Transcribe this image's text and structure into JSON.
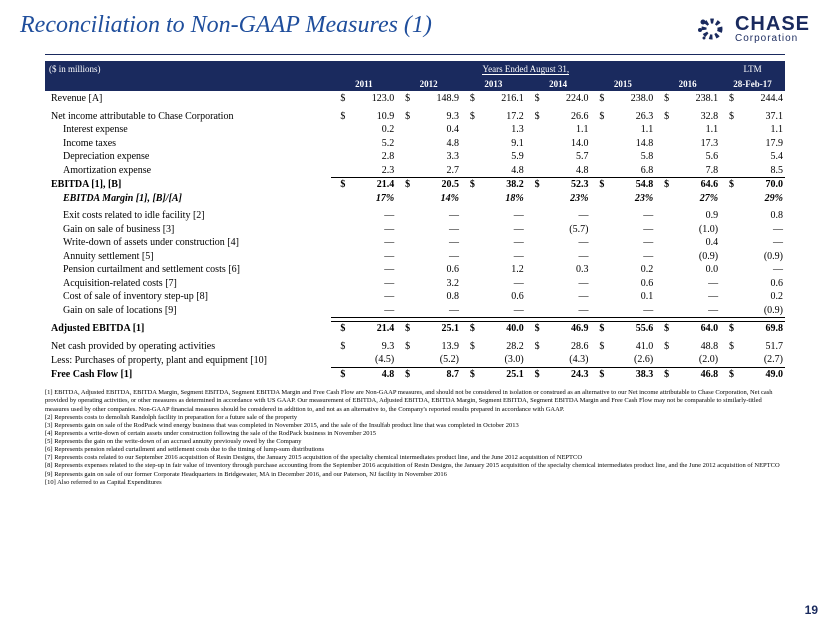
{
  "title": "Reconciliation to Non-GAAP Measures (1)",
  "logo": {
    "chase": "CHASE",
    "corp": "Corporation"
  },
  "table": {
    "currency_note": "($ in millions)",
    "years_header": "Years Ended August 31,",
    "ltm_header": "LTM",
    "cols": [
      "2011",
      "2012",
      "2013",
      "2014",
      "2015",
      "2016",
      "28-Feb-17"
    ],
    "rows": [
      {
        "label": "Revenue [A]",
        "sym": "$",
        "vals": [
          "123.0",
          "148.9",
          "216.1",
          "224.0",
          "238.0",
          "238.1",
          "244.4"
        ]
      },
      {
        "spacer": true
      },
      {
        "label": "Net income attributable to Chase Corporation",
        "sym": "$",
        "vals": [
          "10.9",
          "9.3",
          "17.2",
          "26.6",
          "26.3",
          "32.8",
          "37.1"
        ]
      },
      {
        "label": "Interest expense",
        "indent": true,
        "vals": [
          "0.2",
          "0.4",
          "1.3",
          "1.1",
          "1.1",
          "1.1",
          "1.1"
        ]
      },
      {
        "label": "Income taxes",
        "indent": true,
        "vals": [
          "5.2",
          "4.8",
          "9.1",
          "14.0",
          "14.8",
          "17.3",
          "17.9"
        ]
      },
      {
        "label": "Depreciation expense",
        "indent": true,
        "vals": [
          "2.8",
          "3.3",
          "5.9",
          "5.7",
          "5.8",
          "5.6",
          "5.4"
        ]
      },
      {
        "label": "Amortization expense",
        "indent": true,
        "botline": true,
        "vals": [
          "2.3",
          "2.7",
          "4.8",
          "4.8",
          "6.8",
          "7.8",
          "8.5"
        ]
      },
      {
        "label": "EBITDA [1], [B]",
        "bold": true,
        "sym": "$",
        "vals": [
          "21.4",
          "20.5",
          "38.2",
          "52.3",
          "54.8",
          "64.6",
          "70.0"
        ]
      },
      {
        "label": "EBITDA Margin [1], [B]/[A]",
        "bold": true,
        "ital": true,
        "indent": true,
        "vals": [
          "17%",
          "14%",
          "18%",
          "23%",
          "23%",
          "27%",
          "29%"
        ]
      },
      {
        "spacer": true
      },
      {
        "label": "Exit costs related to idle facility [2]",
        "indent": true,
        "vals": [
          "—",
          "—",
          "—",
          "—",
          "—",
          "0.9",
          "0.8"
        ]
      },
      {
        "label": "Gain on sale of business [3]",
        "indent": true,
        "vals": [
          "—",
          "—",
          "—",
          "(5.7)",
          "—",
          "(1.0)",
          "—"
        ]
      },
      {
        "label": "Write-down of assets under construction [4]",
        "indent": true,
        "vals": [
          "—",
          "—",
          "—",
          "—",
          "—",
          "0.4",
          "—"
        ]
      },
      {
        "label": "Annuity settlement [5]",
        "indent": true,
        "vals": [
          "—",
          "—",
          "—",
          "—",
          "—",
          "(0.9)",
          "(0.9)"
        ]
      },
      {
        "label": "Pension curtailment and settlement costs [6]",
        "indent": true,
        "vals": [
          "—",
          "0.6",
          "1.2",
          "0.3",
          "0.2",
          "0.0",
          "—"
        ]
      },
      {
        "label": "Acquisition-related costs [7]",
        "indent": true,
        "vals": [
          "—",
          "3.2",
          "—",
          "—",
          "0.6",
          "—",
          "0.6"
        ]
      },
      {
        "label": "Cost of sale of inventory step-up [8]",
        "indent": true,
        "vals": [
          "—",
          "0.8",
          "0.6",
          "—",
          "0.1",
          "—",
          "0.2"
        ]
      },
      {
        "label": "Gain on sale of locations [9]",
        "indent": true,
        "botline": true,
        "vals": [
          "—",
          "—",
          "—",
          "—",
          "—",
          "—",
          "(0.9)"
        ]
      },
      {
        "spacer": true
      },
      {
        "label": "Adjusted EBITDA [1]",
        "bold": true,
        "sym": "$",
        "topline": true,
        "vals": [
          "21.4",
          "25.1",
          "40.0",
          "46.9",
          "55.6",
          "64.0",
          "69.8"
        ]
      },
      {
        "spacer": true
      },
      {
        "label": "Net cash provided by operating activities",
        "sym": "$",
        "vals": [
          "9.3",
          "13.9",
          "28.2",
          "28.6",
          "41.0",
          "48.8",
          "51.7"
        ]
      },
      {
        "label": "Less: Purchases of property, plant and equipment [10]",
        "botline": true,
        "vals": [
          "(4.5)",
          "(5.2)",
          "(3.0)",
          "(4.3)",
          "(2.6)",
          "(2.0)",
          "(2.7)"
        ]
      },
      {
        "label": "Free Cash Flow [1]",
        "bold": true,
        "sym": "$",
        "vals": [
          "4.8",
          "8.7",
          "25.1",
          "24.3",
          "38.3",
          "46.8",
          "49.0"
        ]
      }
    ]
  },
  "footnotes": [
    "[1] EBITDA, Adjusted EBITDA, EBITDA Margin, Segment EBITDA, Segment EBITDA Margin and Free Cash Flow are Non-GAAP measures, and should not be considered in isolation or construed as an alternative to our Net income attributable to Chase Corporation, Net cash provided by operating activities, or other measures as determined in accordance with US GAAP. Our measurement of EBITDA, Adjusted EBITDA, EBITDA Margin, Segment EBITDA, Segment EBITDA Margin and Free Cash Flow may not be comparable to similarly-titled measures used by other companies. Non-GAAP financial measures should be considered in addition to, and not as an alternative to, the Company's reported results prepared in accordance with GAAP.",
    "[2] Represents costs to demolish Randolph facility in preparation for a future sale of the property",
    "[3] Represents gain on sale of the RodPack wind energy business that was completed in November 2015, and the sale of the Insulfab product line that was completed in October 2013",
    "[4] Represents a write-down of certain assets under construction following the sale of the RodPack business in November 2015",
    "[5] Represents the gain on the write-down of an accrued annuity previously owed by the Company",
    "[6] Represents pension related curtailment and settlement costs due to the timing of lump-sum distributions",
    "[7] Represents costs related to our September 2016 acquisition of Resin Designs, the January 2015 acquisition of the specialty chemical intermediates product line, and the June 2012 acquisition of NEPTCO",
    "[8] Represents expenses related to the step-up in fair value of inventory through purchase accounting from the September 2016 acquisition of Resin Designs, the January 2015 acquisition of the specialty chemical intermediates product line, and the June 2012 acquisition of NEPTCO",
    "[9] Represents gain on sale of our former Corporate Headquarters in Bridgewater, MA in December 2016, and our Paterson, NJ facility in November 2016",
    "[10] Also referred to as Capital Expenditures"
  ],
  "page_num": "19"
}
